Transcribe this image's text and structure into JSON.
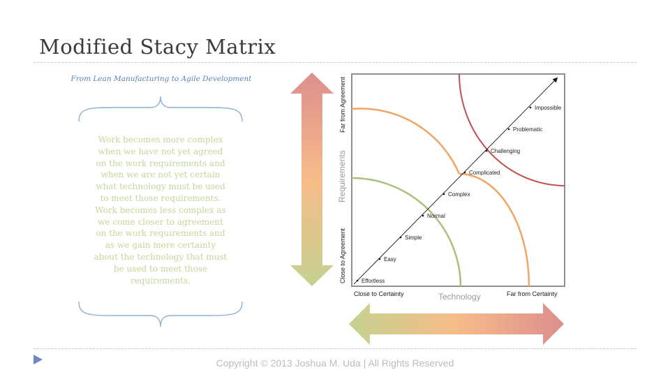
{
  "slide": {
    "title": "Modified Stacy Matrix",
    "subtitle": "From Lean Manufacturing to Agile Development",
    "body_lines": [
      "Work becomes more complex",
      "when we have not yet agreed",
      "on the work requirements and",
      "when we are not yet certain",
      "what technology must be used",
      "to meet those requirements.",
      "Work becomes less complex as",
      "we come closer to agreement",
      "on the work requirements and",
      "as we gain more certainty",
      "about the technology that must",
      "be used to meet those",
      "requirements."
    ],
    "footer": "Copyright © 2013 Joshua M. Uda | All Rights Reserved"
  },
  "matrix": {
    "y_axis": {
      "title": "Requirements",
      "top_label": "Far from Agreement",
      "bottom_label": "Close to Agreement"
    },
    "x_axis": {
      "title": "Technology",
      "left_label": "Close to Certainty",
      "right_label": "Far from Certainty"
    },
    "levels": [
      "Effortless",
      "Easy",
      "Simple",
      "Normal",
      "Complex",
      "Complicated",
      "Challenging",
      "Problematic",
      "Impossible"
    ]
  },
  "colors": {
    "green": "#a8c07a",
    "orange": "#f3a463",
    "red": "#bf4f4f",
    "arrow_green": "#c5d28f",
    "arrow_orange": "#f7bc8a",
    "arrow_red": "#dc8e8c",
    "body_text": "#c3d69b",
    "subtitle": "#5b7fb5"
  }
}
